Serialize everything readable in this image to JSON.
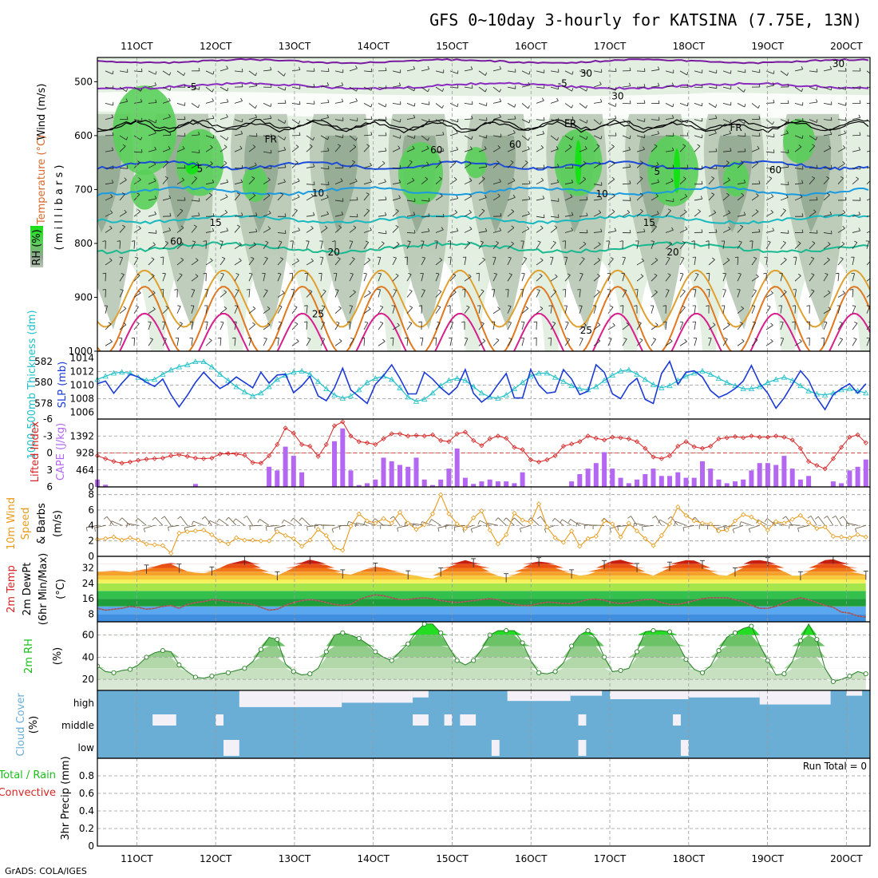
{
  "title": "GFS 0~10day 3-hourly for KATSINA (7.75E, 13N)",
  "credit": "GrADS: COLA/IGES",
  "colors": {
    "rh_light": "#e3f0e1",
    "rh_mid": "#b7c8b5",
    "rh_dark": "#8fa58d",
    "rh_green": "#59cf59",
    "rh_bright": "#16e016",
    "slp": "#1c3bd6",
    "thickness": "#1ec0c8",
    "lifted": "#d82424",
    "cape": "#b468f2",
    "wind10": "#e89b1c",
    "barb": "#6b5a40",
    "dewpoint": "#b0464c",
    "rh2m": "#18c018",
    "cloud": "#6aaed6",
    "cloud_clear": "#f3f0f8",
    "precip_label_green": "#18c018",
    "precip_label_red": "#d82424",
    "temp_label_red": "#d82424",
    "temp_label_orange": "#e89b1c"
  },
  "x_axis": {
    "dates": [
      "11OCT",
      "12OCT",
      "13OCT",
      "14OCT",
      "15OCT",
      "16OCT",
      "17OCT",
      "18OCT",
      "19OCT",
      "20OCT"
    ],
    "start_day": 10.5,
    "end_day": 20.3
  },
  "panels": {
    "upper": {
      "ylabel_wind": "Wind (m/s)",
      "ylabel_temp": "Temperature (°C)",
      "ylabel_mb": "( m i l l i b a r s )",
      "ylabel_rh": "RH (%)",
      "yticks": [
        "500",
        "600",
        "700",
        "800",
        "900",
        "1000"
      ],
      "fr_labels": [
        "FR",
        "FR",
        "FR"
      ],
      "contour_labels": [
        "-5",
        "-5",
        "5",
        "5",
        "10",
        "10",
        "15",
        "15",
        "20",
        "20",
        "25",
        "25",
        "30",
        "30",
        "30",
        "60",
        "60",
        "60",
        "60"
      ]
    },
    "slp": {
      "ylabel_left": "1000-500mb Thickness (dm)",
      "ylabel_right": "SLP (mb)",
      "left_ticks": [
        "582",
        "580",
        "578"
      ],
      "right_ticks": [
        "1014",
        "1012",
        "1010",
        "1008",
        "1006"
      ]
    },
    "cape": {
      "ylabel_left": "Lifted Index",
      "ylabel_right": "CAPE (J/kg)",
      "left_ticks": [
        "-6",
        "-3",
        "0",
        "3",
        "6"
      ],
      "right_ticks": [
        "1392",
        "928",
        "464",
        "0"
      ]
    },
    "wind10": {
      "ylabel_1": "10m Wind",
      "ylabel_2": "Speed",
      "ylabel_3": "& Barbs",
      "ylabel_4": "(m/s)",
      "yticks": [
        "8",
        "6",
        "4",
        "2",
        "0"
      ]
    },
    "temp": {
      "ylabel_1": "2m Temp",
      "ylabel_2": "2m DewPt",
      "ylabel_3": "(6hr Min/Max)",
      "ylabel_4": "(°C)",
      "yticks": [
        "32",
        "24",
        "16",
        "8"
      ]
    },
    "rh2m": {
      "ylabel_1": "2m RH",
      "ylabel_2": "(%)",
      "yticks": [
        "60",
        "40",
        "20"
      ]
    },
    "cloud": {
      "ylabel_1": "Cloud Cover",
      "ylabel_2": "(%)",
      "levels": [
        "high",
        "middle",
        "low"
      ]
    },
    "precip": {
      "ylabel_1": "Total / Rain",
      "ylabel_2": "Convective",
      "ylabel_3": "3hr Precip (mm)",
      "yticks": [
        "0.8",
        "0.6",
        "0.4",
        "0.2",
        "0"
      ],
      "run_total": "Run Total = 0"
    }
  },
  "chart_data": [
    {
      "type": "line",
      "name_panel": "SLP / Thickness",
      "series": [
        {
          "name": "SLP (mb)",
          "values": [
            1010.2,
            1010.6,
            1008.8,
            1010.3,
            1011.6,
            1011.2,
            1010.4,
            1009.8,
            1010.9,
            1008.6,
            1006.8,
            1008.5,
            1010.4,
            1011.9,
            1010.6,
            1009.5,
            1010.2,
            1011.2,
            1010.4,
            1009.6,
            1011.9,
            1010.3,
            1011.5,
            1011.6,
            1008.9,
            1009.9,
            1011.3,
            1008.4,
            1007.7,
            1009.6,
            1012.5,
            1009.3,
            1008.3,
            1007.3,
            1010.1,
            1011.4,
            1013.0,
            1011.0,
            1008.7,
            1008.7,
            1011.9,
            1010.9,
            1009.6,
            1008.6,
            1009.7,
            1012.3,
            1008.8,
            1007.5,
            1008.4,
            1010.1,
            1011.7,
            1008.1,
            1008.1,
            1012.3,
            1010.0,
            1008.8,
            1009.0,
            1012.3,
            1010.9,
            1008.6,
            1009.1,
            1013.0,
            1011.9,
            1008.7,
            1008.0,
            1010.0,
            1011.0,
            1007.9,
            1007.3,
            1011.7,
            1013.5,
            1010.1,
            1011.9,
            1012.1,
            1011.2,
            1009.2,
            1008.2,
            1008.7,
            1009.5,
            1010.6,
            1012.9,
            1010.3,
            1008.8,
            1006.6,
            1008.1,
            1010.1,
            1012.1,
            1010.7,
            1008.1,
            1006.4,
            1008.6,
            1009.5,
            1010.2,
            1008.8,
            1010.2
          ]
        },
        {
          "name": "Thickness (dm)",
          "values": [
            580.3,
            580.6,
            580.9,
            581.0,
            580.9,
            580.5,
            580.2,
            580.3,
            580.8,
            581.2,
            581.5,
            581.7,
            582.0,
            582.0,
            581.5,
            580.8,
            580.2,
            579.6,
            579.1,
            578.7,
            579.0,
            579.6,
            580.3,
            580.7,
            581.0,
            581.1,
            580.8,
            580.1,
            579.4,
            578.8,
            578.5,
            578.7,
            579.3,
            580.0,
            580.4,
            580.6,
            580.3,
            579.5,
            578.6,
            578.2,
            578.4,
            579.0,
            579.7,
            580.2,
            580.4,
            580.2,
            579.6,
            579.0,
            578.6,
            578.5,
            578.8,
            579.4,
            580.0,
            580.6,
            580.9,
            580.9,
            580.5,
            580.1,
            579.7,
            579.4,
            579.3,
            579.6,
            580.2,
            580.7,
            581.1,
            581.2,
            580.8,
            580.3,
            579.8,
            579.5,
            579.7,
            580.2,
            580.6,
            580.9,
            581.1,
            580.8,
            580.4,
            580.0,
            579.7,
            579.4,
            579.4,
            579.6,
            580.0,
            580.3,
            580.5,
            580.2,
            579.7,
            579.2,
            578.9,
            578.8,
            579.0,
            579.3,
            579.4,
            579.2,
            579.0
          ]
        }
      ],
      "ylim_left": [
        576.5,
        583
      ],
      "ylim_right": [
        1005,
        1015
      ]
    },
    {
      "type": "bar",
      "name_panel": "CAPE / Lifted Index",
      "series": [
        {
          "name": "CAPE (J/kg)",
          "values": [
            200,
            60,
            0,
            0,
            0,
            0,
            0,
            0,
            0,
            0,
            0,
            0,
            80,
            0,
            0,
            0,
            0,
            0,
            0,
            0,
            0,
            550,
            450,
            1100,
            850,
            400,
            0,
            0,
            0,
            1250,
            1600,
            450,
            50,
            100,
            200,
            800,
            700,
            600,
            550,
            800,
            200,
            50,
            200,
            500,
            1050,
            250,
            80,
            150,
            200,
            150,
            150,
            100,
            400,
            0,
            0,
            0,
            0,
            0,
            150,
            350,
            500,
            650,
            950,
            500,
            250,
            100,
            200,
            350,
            500,
            300,
            300,
            400,
            250,
            250,
            700,
            500,
            200,
            100,
            150,
            200,
            450,
            650,
            650,
            600,
            850,
            500,
            200,
            300,
            0,
            0,
            150,
            100,
            450,
            550,
            750
          ]
        },
        {
          "name": "Lifted Index",
          "values": [
            0.5,
            1.0,
            1.5,
            1.8,
            1.6,
            1.3,
            1.1,
            1.0,
            0.9,
            0.5,
            0.3,
            0.6,
            0.9,
            1.0,
            0.9,
            0.2,
            0.1,
            0.2,
            0.4,
            1.7,
            1.8,
            0.5,
            -1.5,
            -4.4,
            -3.5,
            -1.5,
            -1.2,
            0.6,
            -1.5,
            -4.8,
            -5.5,
            -3.0,
            -2.0,
            -1.8,
            -1.5,
            -2.5,
            -3.4,
            -3.4,
            -3.0,
            -3.1,
            -3.0,
            -3.2,
            -2.2,
            -2.0,
            -3.4,
            -3.7,
            -2.2,
            -1.3,
            -2.5,
            -3.0,
            -2.6,
            -1.0,
            -0.6,
            1.2,
            1.6,
            1.2,
            0.5,
            -1.2,
            -1.6,
            -2.0,
            -3.0,
            -2.6,
            -2.3,
            -2.8,
            -2.7,
            -2.5,
            -2.0,
            -0.8,
            0.7,
            1.0,
            0.5,
            -1.2,
            -2.0,
            -1.1,
            -0.8,
            -1.2,
            -2.5,
            -2.7,
            -2.9,
            -2.7,
            -3.0,
            -2.8,
            -2.8,
            -3.0,
            -2.8,
            -2.3,
            -0.8,
            1.5,
            2.2,
            2.8,
            1.0,
            -1.0,
            -2.8,
            -3.2,
            -1.8
          ]
        }
      ],
      "ylim_cape": [
        0,
        1856
      ],
      "ylim_li": [
        6,
        -6
      ]
    },
    {
      "type": "line",
      "name_panel": "10m Wind Speed",
      "series": [
        {
          "name": "10m Wind Speed (m/s)",
          "values": [
            2.2,
            2.3,
            2.5,
            2.1,
            2.4,
            2.1,
            1.6,
            1.5,
            1.4,
            0.4,
            3.0,
            3.2,
            3.3,
            3.4,
            2.8,
            2.0,
            1.6,
            2.4,
            2.1,
            2.1,
            2.0,
            2.0,
            3.2,
            2.7,
            2.3,
            1.3,
            2.1,
            3.5,
            2.7,
            1.1,
            0.8,
            3.9,
            5.5,
            4.6,
            4.3,
            4.9,
            4.3,
            5.7,
            4.3,
            3.5,
            4.1,
            5.5,
            8.0,
            5.5,
            4.2,
            3.6,
            5.0,
            5.9,
            3.4,
            1.6,
            2.8,
            5.6,
            4.7,
            4.4,
            6.8,
            3.8,
            2.4,
            1.8,
            3.3,
            1.3,
            2.3,
            2.6,
            4.6,
            4.2,
            2.5,
            4.3,
            3.3,
            2.3,
            1.4,
            2.7,
            4.2,
            6.4,
            5.3,
            4.6,
            4.3,
            4.2,
            3.3,
            3.4,
            4.6,
            5.4,
            5.1,
            4.4,
            3.4,
            4.5,
            4.3,
            4.8,
            5.3,
            4.4,
            3.6,
            3.8,
            2.6,
            2.5,
            2.4,
            2.8,
            2.5
          ]
        }
      ],
      "ylim": [
        0,
        9
      ]
    },
    {
      "type": "area",
      "name_panel": "2m Temp / DewPt",
      "series": [
        {
          "name": "2m Temp (°C)",
          "values": [
            30.0,
            30.2,
            30.5,
            30.2,
            29.8,
            30.7,
            31.5,
            32.7,
            34.0,
            34.5,
            32.0,
            30.2,
            29.5,
            29.2,
            30.5,
            32.0,
            34.0,
            35.0,
            36.0,
            34.5,
            31.4,
            29.0,
            28.0,
            30.0,
            32.5,
            34.8,
            36.3,
            35.3,
            33.5,
            31.0,
            29.0,
            28.5,
            30.0,
            31.5,
            32.5,
            32.0,
            30.8,
            29.5,
            28.5,
            28.0,
            27.0,
            26.5,
            30.0,
            32.5,
            34.8,
            36.0,
            34.8,
            32.8,
            29.5,
            27.8,
            27.0,
            28.5,
            31.5,
            34.5,
            35.3,
            34.8,
            33.5,
            30.5,
            29.0,
            28.0,
            28.5,
            31.0,
            33.8,
            35.6,
            36.2,
            35.0,
            32.3,
            29.3,
            28.0,
            30.0,
            33.0,
            35.0,
            36.0,
            35.8,
            33.8,
            30.7,
            28.3,
            28.0,
            30.0,
            33.0,
            35.8,
            36.0,
            35.3,
            33.5,
            30.0,
            28.0,
            28.0,
            30.5,
            33.7,
            36.0,
            36.5,
            35.0,
            32.5,
            29.3,
            28.3
          ]
        },
        {
          "name": "2m DewPt (°C)",
          "values": [
            11.0,
            10.0,
            10.5,
            11.0,
            12.0,
            11.5,
            10.5,
            11.0,
            12.0,
            12.5,
            11.0,
            13.0,
            14.0,
            14.5,
            15.5,
            15.2,
            14.5,
            14.0,
            13.5,
            13.0,
            11.5,
            10.0,
            10.5,
            12.5,
            14.0,
            15.0,
            15.5,
            15.0,
            14.0,
            13.0,
            12.5,
            13.0,
            15.5,
            17.0,
            18.0,
            17.5,
            16.5,
            15.5,
            15.5,
            16.2,
            16.5,
            16.0,
            15.0,
            14.5,
            14.0,
            14.5,
            15.0,
            15.5,
            16.0,
            15.5,
            14.0,
            13.0,
            12.5,
            12.5,
            13.5,
            14.2,
            14.0,
            13.5,
            13.5,
            14.5,
            15.5,
            15.8,
            15.2,
            14.0,
            13.5,
            14.0,
            15.0,
            15.5,
            15.5,
            14.0,
            13.0,
            13.0,
            14.0,
            15.0,
            16.0,
            16.5,
            16.5,
            16.5,
            15.5,
            14.5,
            12.5,
            11.0,
            11.0,
            12.0,
            14.0,
            15.5,
            16.5,
            15.5,
            14.0,
            12.5,
            11.5,
            9.0,
            8.5,
            7.0,
            6.5
          ]
        }
      ],
      "ylim": [
        4,
        38
      ]
    },
    {
      "type": "area",
      "name_panel": "2m RH",
      "series": [
        {
          "name": "2m RH (%)",
          "values": [
            32,
            27,
            26,
            28,
            29,
            33,
            40,
            44,
            46,
            45,
            33,
            27,
            22,
            21,
            23,
            25,
            26,
            28,
            30,
            36,
            47,
            58,
            56,
            34,
            27,
            24,
            25,
            30,
            45,
            60,
            62,
            60,
            57,
            52,
            45,
            40,
            37,
            45,
            52,
            63,
            70,
            70,
            62,
            49,
            37,
            33,
            37,
            47,
            60,
            64,
            64,
            64,
            53,
            37,
            26,
            25,
            27,
            35,
            50,
            60,
            64,
            57,
            40,
            27,
            28,
            30,
            45,
            63,
            64,
            64,
            63,
            52,
            38,
            29,
            26,
            32,
            46,
            58,
            62,
            66,
            68,
            51,
            37,
            24,
            25,
            36,
            55,
            70,
            56,
            30,
            18,
            20,
            23,
            27,
            25
          ]
        }
      ],
      "ylim": [
        10,
        72
      ]
    },
    {
      "type": "bar",
      "name_panel": "3hr Precip",
      "series": [
        {
          "name": "Total / Rain (mm)",
          "values": [
            0
          ]
        },
        {
          "name": "Convective (mm)",
          "values": [
            0
          ]
        }
      ],
      "ylim": [
        0,
        1.0
      ]
    }
  ]
}
